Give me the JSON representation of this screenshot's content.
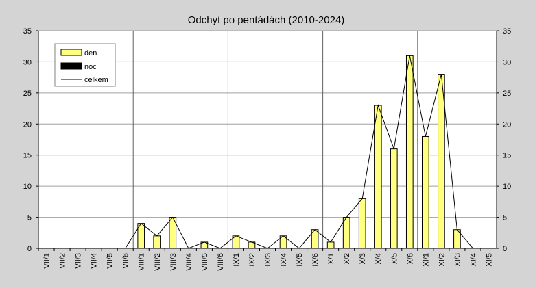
{
  "chart_data": {
    "type": "bar",
    "title": "Odchyt po pentádách (2010-2024)",
    "xlabel": "",
    "ylabel": "",
    "ylim": [
      0,
      35
    ],
    "yticks": [
      0,
      5,
      10,
      15,
      20,
      25,
      30,
      35
    ],
    "secondary_y_axis": true,
    "grid": "horizontal",
    "month_separators_after": [
      "VII/6",
      "VIII/6",
      "IX/6",
      "X/6"
    ],
    "legend_position": "top-left",
    "categories": [
      "VII/1",
      "VII/2",
      "VII/3",
      "VII/4",
      "VII/5",
      "VII/6",
      "VIII/1",
      "VIII/2",
      "VIII/3",
      "VIII/4",
      "VIII/5",
      "VIII/6",
      "IX/1",
      "IX/2",
      "IX/3",
      "IX/4",
      "IX/5",
      "IX/6",
      "X/1",
      "X/2",
      "X/3",
      "X/4",
      "X/5",
      "X/6",
      "XI/1",
      "XI/2",
      "XI/3",
      "XI/4",
      "XI/5"
    ],
    "series": [
      {
        "name": "den",
        "kind": "bar",
        "color": "#ffff80",
        "values": [
          0,
          0,
          0,
          0,
          0,
          0,
          4,
          2,
          5,
          0,
          1,
          0,
          2,
          1,
          0,
          2,
          0,
          3,
          1,
          5,
          8,
          23,
          16,
          31,
          18,
          28,
          3,
          0,
          0
        ]
      },
      {
        "name": "noc",
        "kind": "bar",
        "color": "#000000",
        "values": [
          0,
          0,
          0,
          0,
          0,
          0,
          0,
          0,
          0,
          0,
          0,
          0,
          0,
          0,
          0,
          0,
          0,
          0,
          0,
          0,
          0,
          0,
          0,
          0,
          0,
          0,
          0,
          0,
          0
        ]
      },
      {
        "name": "celkem",
        "kind": "line",
        "color": "#000000",
        "values": [
          0,
          0,
          0,
          0,
          0,
          0,
          4,
          2,
          5,
          0,
          1,
          0,
          2,
          1,
          0,
          2,
          0,
          3,
          1,
          5,
          8,
          23,
          16,
          31,
          18,
          28,
          3,
          0,
          0
        ]
      }
    ]
  }
}
